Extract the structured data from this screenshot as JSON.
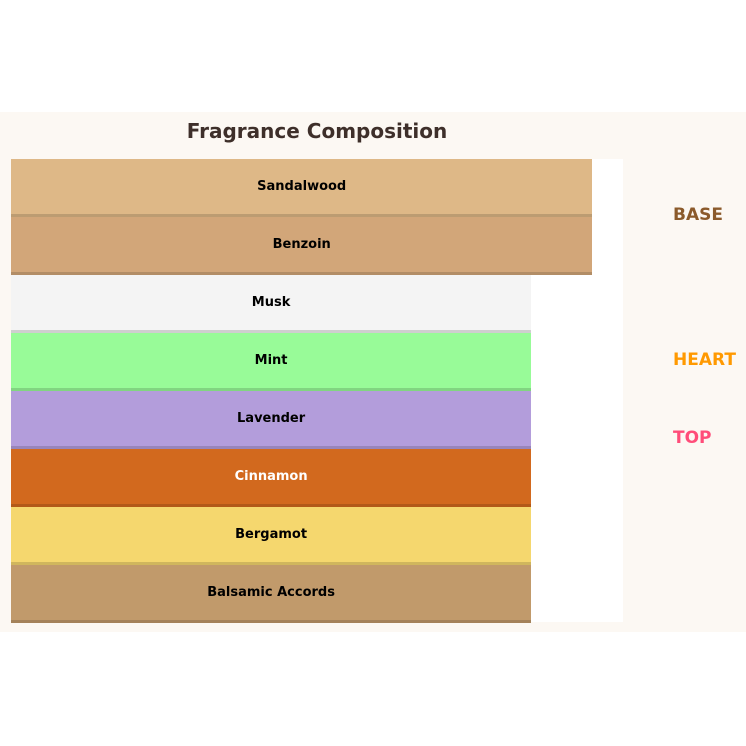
{
  "chart_data": {
    "type": "bar",
    "title": "Fragrance Composition",
    "xlim": [
      0,
      100
    ],
    "categories": [
      "Sandalwood",
      "Benzoin",
      "Musk",
      "Mint",
      "Lavender",
      "Cinnamon",
      "Bergamot",
      "Balsamic Accords"
    ],
    "values": [
      95,
      95,
      85,
      85,
      85,
      85,
      85,
      85
    ],
    "colors": [
      "#deb887",
      "#d2a679",
      "#f4f4f4",
      "#98fb98",
      "#b39ddb",
      "#d2691e",
      "#f5d76e",
      "#c19a6b"
    ],
    "label_colors": [
      "#000000",
      "#000000",
      "#000000",
      "#000000",
      "#000000",
      "#ffffff",
      "#000000",
      "#000000"
    ],
    "annotations": [
      {
        "text": "BASE",
        "color": "#8b5a2b"
      },
      {
        "text": "HEART",
        "color": "#ff9900"
      },
      {
        "text": "TOP",
        "color": "#ff4d79"
      }
    ]
  }
}
